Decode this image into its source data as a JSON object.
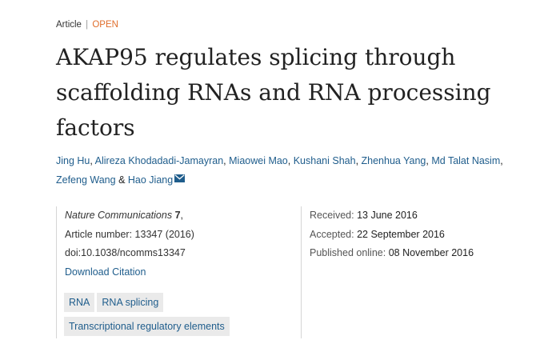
{
  "article": {
    "type_label": "Article",
    "separator": "|",
    "access_label": "OPEN",
    "title": "AKAP95 regulates splicing through scaffolding RNAs and RNA processing factors"
  },
  "authors": [
    "Jing Hu",
    "Alireza Khodadadi-Jamayran",
    "Miaowei Mao",
    "Kushani Shah",
    "Zhenhua Yang",
    "Md Talat Nasim",
    "Zefeng Wang",
    "Hao Jiang"
  ],
  "author_separators": {
    "comma": ", ",
    "ampersand": " & "
  },
  "citation": {
    "journal": "Nature Communications",
    "volume": "7",
    "volume_suffix": ",",
    "article_number_label": "Article number:",
    "article_number": "13347 (2016)",
    "doi": "doi:10.1038/ncomms13347",
    "download_label": "Download Citation"
  },
  "dates": [
    {
      "label": "Received:",
      "value": "13 June 2016"
    },
    {
      "label": "Accepted:",
      "value": "22 September 2016"
    },
    {
      "label": "Published online:",
      "value": "08 November 2016"
    }
  ],
  "subjects": [
    "RNA",
    "RNA splicing",
    "Transcriptional regulatory elements"
  ],
  "colors": {
    "link": "#1f5d8c",
    "open_accent": "#e06e2c",
    "tag_background": "#eaeaea"
  },
  "icons": {
    "corresponding_author": "envelope-icon"
  }
}
